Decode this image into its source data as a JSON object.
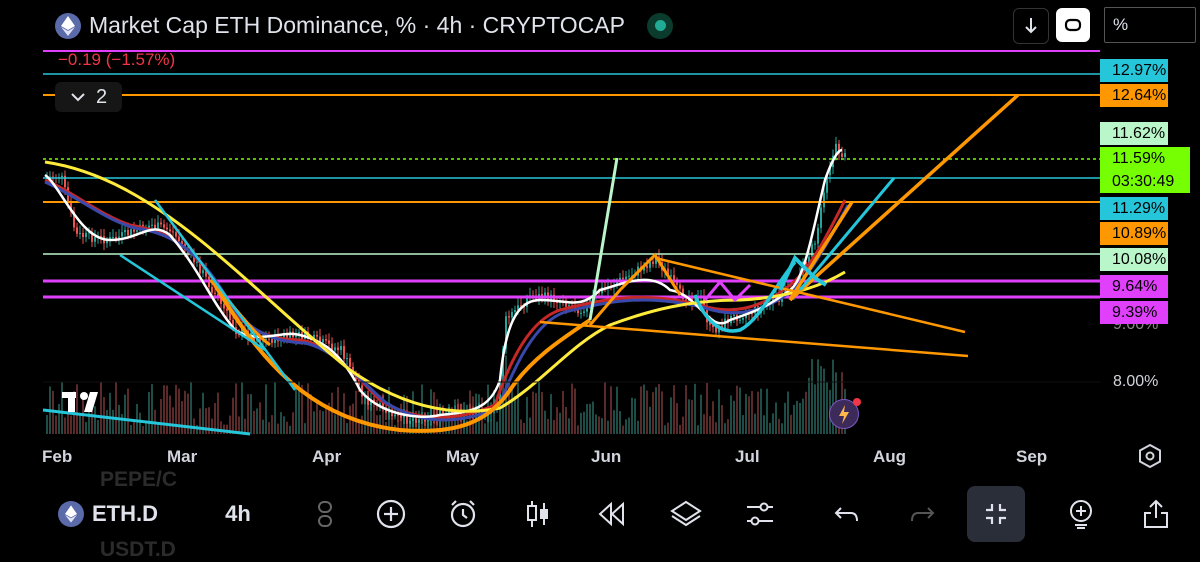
{
  "header": {
    "title": "Market Cap ETH Dominance, % · 4h · CRYPTOCAP",
    "change": "−0.19 (−1.57%)",
    "indicators_count": "2",
    "unit": "%"
  },
  "price_axis": {
    "labels": [
      {
        "text": "12.97%",
        "color": "#26c6da"
      },
      {
        "text": "12.64%",
        "color": "#ff9800"
      },
      {
        "text": "11.62%",
        "color": "#b9f6ca"
      },
      {
        "text": "11.59%",
        "color": "#76ff03"
      },
      {
        "text": "03:30:49",
        "color": "#76ff03"
      },
      {
        "text": "11.29%",
        "color": "#26c6da"
      },
      {
        "text": "10.89%",
        "color": "#ff9800"
      },
      {
        "text": "10.08%",
        "color": "#b9f6ca"
      },
      {
        "text": "9.64%",
        "color": "#e040fb"
      },
      {
        "text": "9.39%",
        "color": "#e040fb"
      }
    ],
    "partial_label": "9.00%",
    "plain_label": "8.00%"
  },
  "time_axis": {
    "months": [
      "Feb",
      "Mar",
      "Apr",
      "May",
      "Jun",
      "Jul",
      "Aug",
      "Sep"
    ]
  },
  "bottom_toolbar": {
    "symbol": "ETH.D",
    "interval": "4h",
    "ghost_top": "PEPE/C",
    "ghost_bottom": "USDT.D"
  },
  "colors": {
    "up": "#26a69a",
    "down": "#ef5350",
    "white_ma": "#ffffff",
    "yellow_ma": "#ffeb3b",
    "orange_draw": "#ff9800",
    "cyan_draw": "#26c6da",
    "magenta_line": "#e040fb"
  },
  "icons": [
    "ethereum-icon",
    "live-status-icon",
    "download-icon",
    "refresh-icon",
    "tradingview-logo-icon",
    "bolt-icon",
    "settings-hexagon-icon",
    "add-icon",
    "alarm-icon",
    "candles-icon",
    "replay-icon",
    "layers-icon",
    "sliders-icon",
    "undo-icon",
    "redo-icon",
    "fullscreen-exit-icon",
    "idea-icon",
    "share-icon"
  ]
}
